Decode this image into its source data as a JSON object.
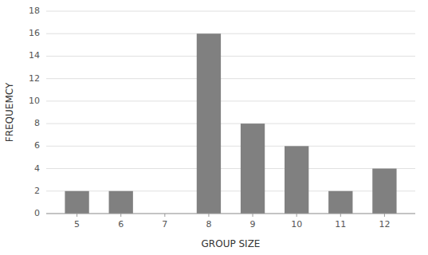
{
  "chart_data": {
    "type": "bar",
    "x": [
      5,
      6,
      7,
      8,
      9,
      10,
      11,
      12
    ],
    "values": [
      2,
      2,
      0,
      16,
      8,
      6,
      2,
      4
    ],
    "color": "#808080",
    "xlabel": "GROUP SIZE",
    "ylabel": "FREQUEMCY",
    "xlim": [
      4.3,
      12.7
    ],
    "xticks": [
      5,
      6,
      7,
      8,
      9,
      10,
      11,
      12
    ],
    "ylim": [
      0,
      18
    ],
    "yticks": [
      0,
      2,
      4,
      6,
      8,
      10,
      12,
      14,
      16,
      18
    ],
    "grid": true
  }
}
